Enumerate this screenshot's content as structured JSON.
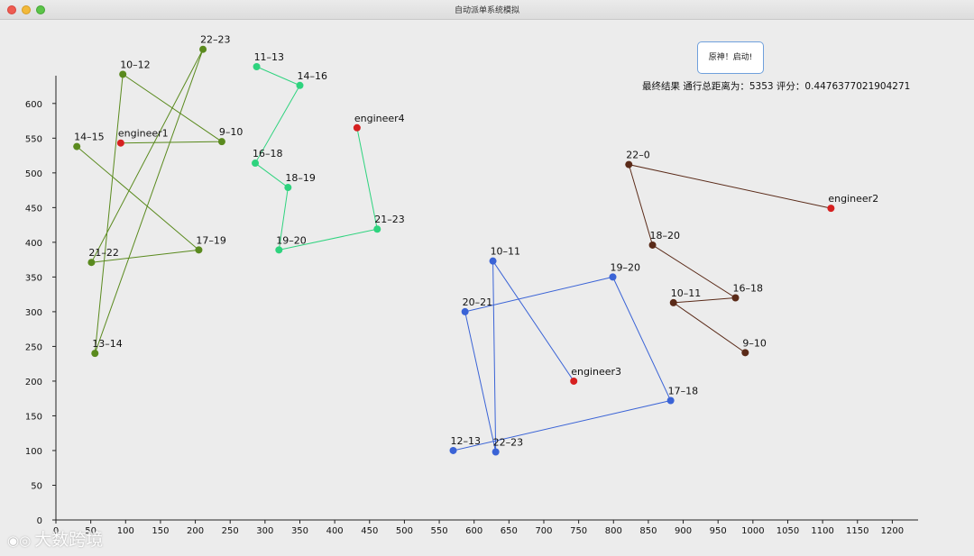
{
  "window": {
    "title": "自动派单系统模拟"
  },
  "controls": {
    "start_button_label": "原神！启动!"
  },
  "result": {
    "label": "最终结果",
    "distance_label": "通行总距离为：",
    "distance": "5353",
    "score_label": "评分：",
    "score": "0.4476377021904271"
  },
  "watermark": {
    "text": "大数跨境"
  },
  "chart_data": {
    "type": "scatter",
    "xlim": [
      0,
      1237
    ],
    "ylim": [
      0,
      640
    ],
    "xticks": [
      0,
      50,
      100,
      150,
      200,
      250,
      300,
      350,
      400,
      450,
      500,
      550,
      600,
      650,
      700,
      750,
      800,
      850,
      900,
      950,
      1000,
      1050,
      1100,
      1150,
      1200
    ],
    "yticks": [
      0,
      50,
      100,
      150,
      200,
      250,
      300,
      350,
      400,
      450,
      500,
      550,
      600
    ],
    "routes": [
      {
        "engineer": "engineer1",
        "color": "#5a8a1e",
        "points": [
          {
            "label": "engineer1",
            "x": 93,
            "y": 543,
            "engineer": true
          },
          {
            "label": "9–10",
            "x": 238,
            "y": 545
          },
          {
            "label": "10–12",
            "x": 96,
            "y": 642
          },
          {
            "label": "13–14",
            "x": 56,
            "y": 240
          },
          {
            "label": "22–23",
            "x": 211,
            "y": 678
          },
          {
            "label": "21–22",
            "x": 51,
            "y": 371
          },
          {
            "label": "17–19",
            "x": 205,
            "y": 389
          },
          {
            "label": "14–15",
            "x": 30,
            "y": 538
          }
        ]
      },
      {
        "engineer": "engineer4",
        "color": "#2ed37e",
        "points": [
          {
            "label": "engineer4",
            "x": 432,
            "y": 565,
            "engineer": true
          },
          {
            "label": "21–23",
            "x": 461,
            "y": 419
          },
          {
            "label": "19–20",
            "x": 320,
            "y": 389
          },
          {
            "label": "18–19",
            "x": 333,
            "y": 479
          },
          {
            "label": "16–18",
            "x": 286,
            "y": 514
          },
          {
            "label": "14–16",
            "x": 350,
            "y": 626
          },
          {
            "label": "11–13",
            "x": 288,
            "y": 653
          }
        ]
      },
      {
        "engineer": "engineer3",
        "color": "#3a63d6",
        "points": [
          {
            "label": "engineer3",
            "x": 743,
            "y": 200,
            "engineer": true
          },
          {
            "label": "10–11",
            "x": 627,
            "y": 373
          },
          {
            "label": "22–23",
            "x": 631,
            "y": 98
          },
          {
            "label": "20–21",
            "x": 587,
            "y": 300
          },
          {
            "label": "19–20",
            "x": 799,
            "y": 350
          },
          {
            "label": "17–18",
            "x": 882,
            "y": 172
          },
          {
            "label": "12–13",
            "x": 570,
            "y": 100
          }
        ]
      },
      {
        "engineer": "engineer2",
        "color": "#5a2a18",
        "points": [
          {
            "label": "engineer2",
            "x": 1112,
            "y": 449,
            "engineer": true
          },
          {
            "label": "22–0",
            "x": 822,
            "y": 512
          },
          {
            "label": "18–20",
            "x": 856,
            "y": 396
          },
          {
            "label": "16–18",
            "x": 975,
            "y": 320
          },
          {
            "label": "10–11",
            "x": 886,
            "y": 313
          },
          {
            "label": "9–10",
            "x": 989,
            "y": 241
          }
        ]
      }
    ],
    "engineer_color": "#d62020"
  }
}
